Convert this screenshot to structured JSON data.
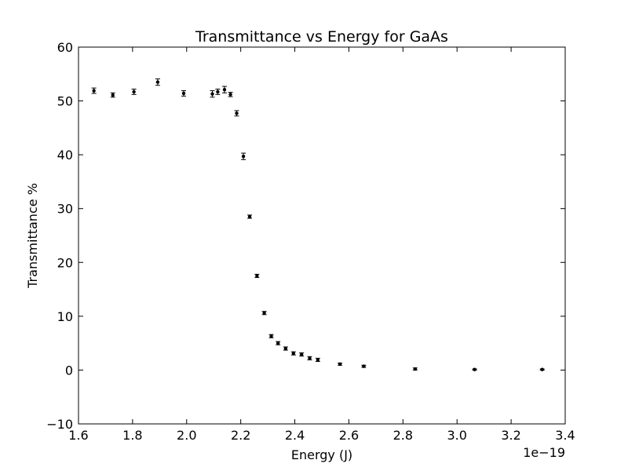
{
  "chart_data": {
    "type": "scatter",
    "title": "Transmittance vs Energy for GaAs",
    "xlabel": "Energy (J)",
    "ylabel": "Transmittance %",
    "x_scale_text": "1e−19",
    "xlim": [
      1.6,
      3.4
    ],
    "ylim": [
      -10,
      60
    ],
    "x_ticks": [
      "1.6",
      "1.8",
      "2.0",
      "2.2",
      "2.4",
      "2.6",
      "2.8",
      "3.0",
      "3.2",
      "3.4"
    ],
    "y_ticks": [
      "−10",
      "0",
      "10",
      "20",
      "30",
      "40",
      "50",
      "60"
    ],
    "x_tick_values": [
      1.6,
      1.8,
      2.0,
      2.2,
      2.4,
      2.6,
      2.8,
      3.0,
      3.2,
      3.4
    ],
    "y_tick_values": [
      -10,
      0,
      10,
      20,
      30,
      40,
      50,
      60
    ],
    "grid": false,
    "marker_color": "#000000",
    "points": [
      {
        "x": 1.657,
        "y": 51.9,
        "err": 0.5
      },
      {
        "x": 1.727,
        "y": 51.1,
        "err": 0.4
      },
      {
        "x": 1.805,
        "y": 51.7,
        "err": 0.5
      },
      {
        "x": 1.893,
        "y": 53.5,
        "err": 0.6
      },
      {
        "x": 1.989,
        "y": 51.4,
        "err": 0.5
      },
      {
        "x": 2.095,
        "y": 51.3,
        "err": 0.6
      },
      {
        "x": 2.115,
        "y": 51.7,
        "err": 0.5
      },
      {
        "x": 2.14,
        "y": 52.1,
        "err": 0.6
      },
      {
        "x": 2.162,
        "y": 51.2,
        "err": 0.4
      },
      {
        "x": 2.185,
        "y": 47.7,
        "err": 0.5
      },
      {
        "x": 2.21,
        "y": 39.7,
        "err": 0.6
      },
      {
        "x": 2.233,
        "y": 28.5,
        "err": 0.3
      },
      {
        "x": 2.26,
        "y": 17.5,
        "err": 0.3
      },
      {
        "x": 2.287,
        "y": 10.6,
        "err": 0.3
      },
      {
        "x": 2.313,
        "y": 6.3,
        "err": 0.3
      },
      {
        "x": 2.338,
        "y": 5.0,
        "err": 0.3
      },
      {
        "x": 2.366,
        "y": 4.0,
        "err": 0.3
      },
      {
        "x": 2.395,
        "y": 3.1,
        "err": 0.3
      },
      {
        "x": 2.425,
        "y": 2.9,
        "err": 0.3
      },
      {
        "x": 2.455,
        "y": 2.2,
        "err": 0.3
      },
      {
        "x": 2.485,
        "y": 1.9,
        "err": 0.3
      },
      {
        "x": 2.567,
        "y": 1.1,
        "err": 0.2
      },
      {
        "x": 2.655,
        "y": 0.7,
        "err": 0.2
      },
      {
        "x": 2.845,
        "y": 0.2,
        "err": 0.2
      },
      {
        "x": 3.065,
        "y": 0.1,
        "err": 0.1
      },
      {
        "x": 3.315,
        "y": 0.1,
        "err": 0.1
      }
    ]
  }
}
